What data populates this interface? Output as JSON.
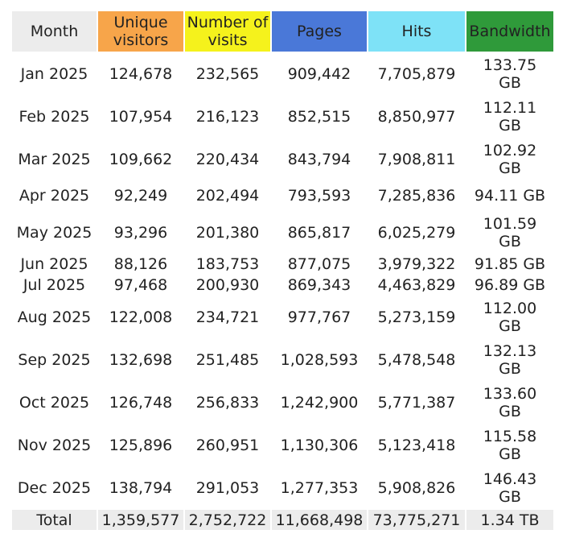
{
  "table": {
    "headers": {
      "month": "Month",
      "unique_visitors": "Unique visitors",
      "number_of_visits": "Number of visits",
      "pages": "Pages",
      "hits": "Hits",
      "bandwidth": "Bandwidth"
    },
    "header_colors": {
      "month": "#ececec",
      "unique_visitors": "#f7a54a",
      "number_of_visits": "#f5f21c",
      "pages": "#4a78d8",
      "hits": "#7ee2f7",
      "bandwidth": "#2f9a3a"
    },
    "rows": [
      {
        "month": "Jan 2025",
        "unique_visitors": "124,678",
        "number_of_visits": "232,565",
        "pages": "909,442",
        "hits": "7,705,879",
        "bandwidth": "133.75 GB"
      },
      {
        "month": "Feb 2025",
        "unique_visitors": "107,954",
        "number_of_visits": "216,123",
        "pages": "852,515",
        "hits": "8,850,977",
        "bandwidth": "112.11 GB"
      },
      {
        "month": "Mar 2025",
        "unique_visitors": "109,662",
        "number_of_visits": "220,434",
        "pages": "843,794",
        "hits": "7,908,811",
        "bandwidth": "102.92 GB"
      },
      {
        "month": "Apr 2025",
        "unique_visitors": "92,249",
        "number_of_visits": "202,494",
        "pages": "793,593",
        "hits": "7,285,836",
        "bandwidth": "94.11 GB"
      },
      {
        "month": "May 2025",
        "unique_visitors": "93,296",
        "number_of_visits": "201,380",
        "pages": "865,817",
        "hits": "6,025,279",
        "bandwidth": "101.59 GB"
      },
      {
        "month": "Jun 2025",
        "unique_visitors": "88,126",
        "number_of_visits": "183,753",
        "pages": "877,075",
        "hits": "3,979,322",
        "bandwidth": "91.85 GB"
      },
      {
        "month": "Jul 2025",
        "unique_visitors": "97,468",
        "number_of_visits": "200,930",
        "pages": "869,343",
        "hits": "4,463,829",
        "bandwidth": "96.89 GB"
      },
      {
        "month": "Aug 2025",
        "unique_visitors": "122,008",
        "number_of_visits": "234,721",
        "pages": "977,767",
        "hits": "5,273,159",
        "bandwidth": "112.00 GB"
      },
      {
        "month": "Sep 2025",
        "unique_visitors": "132,698",
        "number_of_visits": "251,485",
        "pages": "1,028,593",
        "hits": "5,478,548",
        "bandwidth": "132.13 GB"
      },
      {
        "month": "Oct 2025",
        "unique_visitors": "126,748",
        "number_of_visits": "256,833",
        "pages": "1,242,900",
        "hits": "5,771,387",
        "bandwidth": "133.60 GB"
      },
      {
        "month": "Nov 2025",
        "unique_visitors": "125,896",
        "number_of_visits": "260,951",
        "pages": "1,130,306",
        "hits": "5,123,418",
        "bandwidth": "115.58 GB"
      },
      {
        "month": "Dec 2025",
        "unique_visitors": "138,794",
        "number_of_visits": "291,053",
        "pages": "1,277,353",
        "hits": "5,908,826",
        "bandwidth": "146.43 GB"
      }
    ],
    "total": {
      "label": "Total",
      "unique_visitors": "1,359,577",
      "number_of_visits": "2,752,722",
      "pages": "11,668,498",
      "hits": "73,775,271",
      "bandwidth": "1.34 TB"
    }
  }
}
